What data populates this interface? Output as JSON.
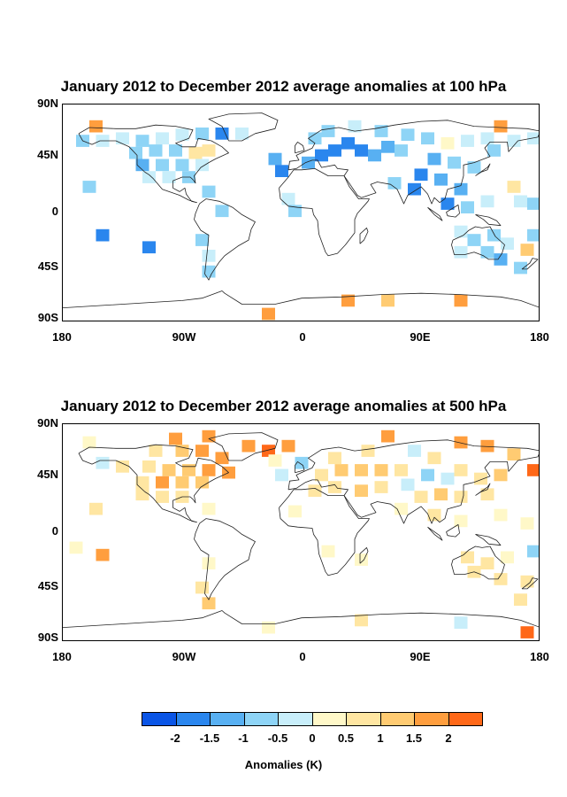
{
  "chart_data": [
    {
      "type": "heatmap",
      "title": "January 2012 to December 2012 average anomalies at 100 hPa",
      "x_ticks": [
        "180",
        "90W",
        "0",
        "90E",
        "180"
      ],
      "y_ticks": [
        "90N",
        "45N",
        "0",
        "45S",
        "90S"
      ],
      "xlim": [
        -180,
        180
      ],
      "ylim": [
        -90,
        90
      ],
      "grid": false,
      "units": "K",
      "cells": [
        {
          "lon": -155,
          "lat": 72,
          "v": 1.7
        },
        {
          "lon": -165,
          "lat": 60,
          "v": -0.6
        },
        {
          "lon": -150,
          "lat": 60,
          "v": -0.4
        },
        {
          "lon": -135,
          "lat": 62,
          "v": -0.3
        },
        {
          "lon": -120,
          "lat": 60,
          "v": -0.6
        },
        {
          "lon": -105,
          "lat": 62,
          "v": -0.4
        },
        {
          "lon": -90,
          "lat": 65,
          "v": -0.5
        },
        {
          "lon": -75,
          "lat": 66,
          "v": -0.6
        },
        {
          "lon": -60,
          "lat": 66,
          "v": -2.0
        },
        {
          "lon": -45,
          "lat": 66,
          "v": -0.3
        },
        {
          "lon": -125,
          "lat": 50,
          "v": -1.0
        },
        {
          "lon": -110,
          "lat": 52,
          "v": -0.8
        },
        {
          "lon": -95,
          "lat": 52,
          "v": -0.6
        },
        {
          "lon": -80,
          "lat": 50,
          "v": 0.5
        },
        {
          "lon": -70,
          "lat": 52,
          "v": 0.6
        },
        {
          "lon": -120,
          "lat": 40,
          "v": -1.1
        },
        {
          "lon": -105,
          "lat": 40,
          "v": -0.9
        },
        {
          "lon": -90,
          "lat": 40,
          "v": -0.7
        },
        {
          "lon": -75,
          "lat": 40,
          "v": -0.4
        },
        {
          "lon": -115,
          "lat": 30,
          "v": -0.5
        },
        {
          "lon": -100,
          "lat": 30,
          "v": -0.3
        },
        {
          "lon": -85,
          "lat": 30,
          "v": -0.6
        },
        {
          "lon": -160,
          "lat": 22,
          "v": -0.8
        },
        {
          "lon": -70,
          "lat": 18,
          "v": -0.9
        },
        {
          "lon": -60,
          "lat": 2,
          "v": -0.6
        },
        {
          "lon": -150,
          "lat": -18,
          "v": -2.0
        },
        {
          "lon": -115,
          "lat": -28,
          "v": -2.0
        },
        {
          "lon": -75,
          "lat": -22,
          "v": -0.8
        },
        {
          "lon": -70,
          "lat": -35,
          "v": -0.4
        },
        {
          "lon": -70,
          "lat": -48,
          "v": -0.9
        },
        {
          "lon": -25,
          "lat": -83,
          "v": 1.9
        },
        {
          "lon": -20,
          "lat": 45,
          "v": -1.2
        },
        {
          "lon": -15,
          "lat": 35,
          "v": -1.8
        },
        {
          "lon": 5,
          "lat": 42,
          "v": -1.5
        },
        {
          "lon": 15,
          "lat": 48,
          "v": -1.7
        },
        {
          "lon": 25,
          "lat": 52,
          "v": -1.9
        },
        {
          "lon": 35,
          "lat": 58,
          "v": -1.6
        },
        {
          "lon": 45,
          "lat": 52,
          "v": -1.9
        },
        {
          "lon": 55,
          "lat": 48,
          "v": -1.4
        },
        {
          "lon": 65,
          "lat": 55,
          "v": -1.2
        },
        {
          "lon": 75,
          "lat": 52,
          "v": -1.0
        },
        {
          "lon": 10,
          "lat": 62,
          "v": -0.8
        },
        {
          "lon": 20,
          "lat": 68,
          "v": -0.6
        },
        {
          "lon": 40,
          "lat": 72,
          "v": -0.5
        },
        {
          "lon": 60,
          "lat": 68,
          "v": -0.7
        },
        {
          "lon": 80,
          "lat": 65,
          "v": -0.9
        },
        {
          "lon": 95,
          "lat": 62,
          "v": -0.6
        },
        {
          "lon": 110,
          "lat": 58,
          "v": 0.4
        },
        {
          "lon": 125,
          "lat": 60,
          "v": -0.5
        },
        {
          "lon": 140,
          "lat": 62,
          "v": -0.4
        },
        {
          "lon": 150,
          "lat": 72,
          "v": 1.6
        },
        {
          "lon": 145,
          "lat": 52,
          "v": -0.7
        },
        {
          "lon": 160,
          "lat": 60,
          "v": -0.5
        },
        {
          "lon": 175,
          "lat": 62,
          "v": -0.4
        },
        {
          "lon": 100,
          "lat": 45,
          "v": -1.3
        },
        {
          "lon": 115,
          "lat": 42,
          "v": -1.0
        },
        {
          "lon": 130,
          "lat": 38,
          "v": -0.8
        },
        {
          "lon": 90,
          "lat": 32,
          "v": -1.6
        },
        {
          "lon": 105,
          "lat": 28,
          "v": -1.2
        },
        {
          "lon": 85,
          "lat": 20,
          "v": -2.0
        },
        {
          "lon": 70,
          "lat": 25,
          "v": -0.6
        },
        {
          "lon": 120,
          "lat": 20,
          "v": -1.1
        },
        {
          "lon": 110,
          "lat": 8,
          "v": -2.0
        },
        {
          "lon": 125,
          "lat": 5,
          "v": -0.8
        },
        {
          "lon": 140,
          "lat": 10,
          "v": -0.5
        },
        {
          "lon": 165,
          "lat": 10,
          "v": -0.4
        },
        {
          "lon": 175,
          "lat": 8,
          "v": -0.9
        },
        {
          "lon": 160,
          "lat": 22,
          "v": 0.5
        },
        {
          "lon": -10,
          "lat": 12,
          "v": -0.5
        },
        {
          "lon": -5,
          "lat": 2,
          "v": -1.0
        },
        {
          "lon": 120,
          "lat": -15,
          "v": -0.4
        },
        {
          "lon": 130,
          "lat": -22,
          "v": -0.9
        },
        {
          "lon": 145,
          "lat": -18,
          "v": -0.6
        },
        {
          "lon": 155,
          "lat": -25,
          "v": -0.5
        },
        {
          "lon": 120,
          "lat": -32,
          "v": -0.3
        },
        {
          "lon": 140,
          "lat": -32,
          "v": -0.6
        },
        {
          "lon": 150,
          "lat": -38,
          "v": -1.2
        },
        {
          "lon": 165,
          "lat": -45,
          "v": -0.7
        },
        {
          "lon": 170,
          "lat": -30,
          "v": 1.2
        },
        {
          "lon": 175,
          "lat": -18,
          "v": -0.8
        },
        {
          "lon": 35,
          "lat": -72,
          "v": 1.6
        },
        {
          "lon": 65,
          "lat": -72,
          "v": 1.4
        },
        {
          "lon": 120,
          "lat": -72,
          "v": 1.9
        }
      ]
    },
    {
      "type": "heatmap",
      "title": "January 2012 to December 2012 average anomalies at 500 hPa",
      "x_ticks": [
        "180",
        "90W",
        "0",
        "90E",
        "180"
      ],
      "y_ticks": [
        "90N",
        "45N",
        "0",
        "45S",
        "90S"
      ],
      "xlim": [
        -180,
        180
      ],
      "ylim": [
        -90,
        90
      ],
      "grid": false,
      "units": "K",
      "cells": [
        {
          "lon": -160,
          "lat": 75,
          "v": 0.4
        },
        {
          "lon": -95,
          "lat": 78,
          "v": 1.5
        },
        {
          "lon": -70,
          "lat": 80,
          "v": 1.8
        },
        {
          "lon": -110,
          "lat": 68,
          "v": 0.8
        },
        {
          "lon": -90,
          "lat": 68,
          "v": 1.3
        },
        {
          "lon": -75,
          "lat": 68,
          "v": 1.9
        },
        {
          "lon": -60,
          "lat": 62,
          "v": 1.6
        },
        {
          "lon": -40,
          "lat": 72,
          "v": 1.8
        },
        {
          "lon": -25,
          "lat": 68,
          "v": 2.0
        },
        {
          "lon": -10,
          "lat": 72,
          "v": 1.9
        },
        {
          "lon": -150,
          "lat": 58,
          "v": -0.5
        },
        {
          "lon": -135,
          "lat": 55,
          "v": 0.5
        },
        {
          "lon": -115,
          "lat": 55,
          "v": 0.6
        },
        {
          "lon": -100,
          "lat": 52,
          "v": 1.0
        },
        {
          "lon": -85,
          "lat": 52,
          "v": 1.3
        },
        {
          "lon": -70,
          "lat": 52,
          "v": 1.7
        },
        {
          "lon": -55,
          "lat": 50,
          "v": 1.5
        },
        {
          "lon": -120,
          "lat": 42,
          "v": 0.9
        },
        {
          "lon": -105,
          "lat": 42,
          "v": 1.6
        },
        {
          "lon": -90,
          "lat": 42,
          "v": 1.4
        },
        {
          "lon": -75,
          "lat": 42,
          "v": 1.2
        },
        {
          "lon": -120,
          "lat": 32,
          "v": 0.8
        },
        {
          "lon": -105,
          "lat": 30,
          "v": 0.5
        },
        {
          "lon": -90,
          "lat": 30,
          "v": 0.7
        },
        {
          "lon": -155,
          "lat": 20,
          "v": 0.5
        },
        {
          "lon": -70,
          "lat": 20,
          "v": 0.4
        },
        {
          "lon": -150,
          "lat": -18,
          "v": 1.8
        },
        {
          "lon": -170,
          "lat": -12,
          "v": 0.3
        },
        {
          "lon": -70,
          "lat": -25,
          "v": 0.4
        },
        {
          "lon": -75,
          "lat": -45,
          "v": 0.5
        },
        {
          "lon": -70,
          "lat": -58,
          "v": 1.3
        },
        {
          "lon": -25,
          "lat": -78,
          "v": 0.4
        },
        {
          "lon": -15,
          "lat": 48,
          "v": -0.5
        },
        {
          "lon": -20,
          "lat": 60,
          "v": 0.3
        },
        {
          "lon": 0,
          "lat": 58,
          "v": -0.6
        },
        {
          "lon": 15,
          "lat": 48,
          "v": 0.6
        },
        {
          "lon": 30,
          "lat": 52,
          "v": 1.0
        },
        {
          "lon": 45,
          "lat": 52,
          "v": 1.2
        },
        {
          "lon": 60,
          "lat": 52,
          "v": 1.3
        },
        {
          "lon": 75,
          "lat": 52,
          "v": 0.6
        },
        {
          "lon": 25,
          "lat": 62,
          "v": 0.7
        },
        {
          "lon": 50,
          "lat": 68,
          "v": 0.9
        },
        {
          "lon": 65,
          "lat": 80,
          "v": 1.9
        },
        {
          "lon": 85,
          "lat": 68,
          "v": -0.4
        },
        {
          "lon": 100,
          "lat": 62,
          "v": 0.5
        },
        {
          "lon": 120,
          "lat": 75,
          "v": 1.7
        },
        {
          "lon": 140,
          "lat": 72,
          "v": 1.5
        },
        {
          "lon": 160,
          "lat": 65,
          "v": 1.0
        },
        {
          "lon": 175,
          "lat": 52,
          "v": 2.0
        },
        {
          "lon": 10,
          "lat": 35,
          "v": 0.6
        },
        {
          "lon": 25,
          "lat": 38,
          "v": 0.8
        },
        {
          "lon": 45,
          "lat": 35,
          "v": 1.0
        },
        {
          "lon": 60,
          "lat": 38,
          "v": 0.7
        },
        {
          "lon": 80,
          "lat": 40,
          "v": -0.5
        },
        {
          "lon": 95,
          "lat": 48,
          "v": -0.6
        },
        {
          "lon": 110,
          "lat": 45,
          "v": -0.4
        },
        {
          "lon": 120,
          "lat": 52,
          "v": 0.6
        },
        {
          "lon": 135,
          "lat": 45,
          "v": 0.8
        },
        {
          "lon": 150,
          "lat": 48,
          "v": 1.1
        },
        {
          "lon": 90,
          "lat": 30,
          "v": 0.9
        },
        {
          "lon": 105,
          "lat": 32,
          "v": 1.2
        },
        {
          "lon": 120,
          "lat": 30,
          "v": 0.7
        },
        {
          "lon": 140,
          "lat": 32,
          "v": 0.5
        },
        {
          "lon": 75,
          "lat": 20,
          "v": 0.4
        },
        {
          "lon": 100,
          "lat": 15,
          "v": 0.6
        },
        {
          "lon": 120,
          "lat": 10,
          "v": 0.3
        },
        {
          "lon": 150,
          "lat": 15,
          "v": 0.4
        },
        {
          "lon": 170,
          "lat": 8,
          "v": 0.3
        },
        {
          "lon": -5,
          "lat": 18,
          "v": 0.3
        },
        {
          "lon": 20,
          "lat": -15,
          "v": 0.4
        },
        {
          "lon": 45,
          "lat": -22,
          "v": 0.3
        },
        {
          "lon": 125,
          "lat": -20,
          "v": 0.5
        },
        {
          "lon": 140,
          "lat": -25,
          "v": 0.7
        },
        {
          "lon": 155,
          "lat": -20,
          "v": 0.4
        },
        {
          "lon": 130,
          "lat": -32,
          "v": 0.6
        },
        {
          "lon": 150,
          "lat": -38,
          "v": 0.9
        },
        {
          "lon": 170,
          "lat": -40,
          "v": 0.5
        },
        {
          "lon": 175,
          "lat": -15,
          "v": -0.6
        },
        {
          "lon": 165,
          "lat": -55,
          "v": 0.6
        },
        {
          "lon": 45,
          "lat": -72,
          "v": 0.5
        },
        {
          "lon": 120,
          "lat": -74,
          "v": -0.4
        },
        {
          "lon": 170,
          "lat": -82,
          "v": 2.0
        }
      ]
    }
  ],
  "colorbar": {
    "colors": [
      "#0a55e6",
      "#2a86ee",
      "#58b0f2",
      "#8ed4f6",
      "#c8eefa",
      "#fff8c8",
      "#ffe6a2",
      "#ffcb72",
      "#ff9e3e",
      "#ff6818"
    ],
    "boundaries": [
      -2.5,
      -2,
      -1.5,
      -1,
      -0.5,
      0,
      0.5,
      1,
      1.5,
      2,
      2.5
    ],
    "tick_labels": [
      "-2",
      "-1.5",
      "-1",
      "-0.5",
      "0",
      "0.5",
      "1",
      "1.5",
      "2"
    ],
    "title": "Anomalies (K)"
  }
}
